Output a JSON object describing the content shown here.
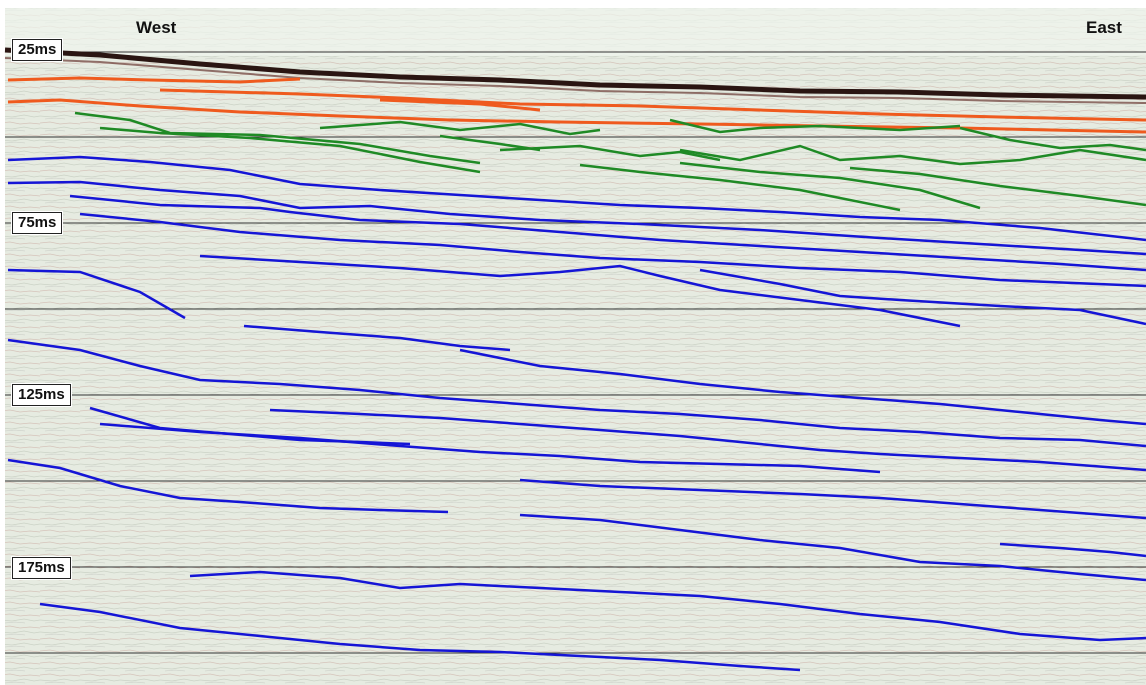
{
  "labels": {
    "west": "West",
    "east": "East"
  },
  "time_markers": [
    "25ms",
    "75ms",
    "125ms",
    "175ms"
  ],
  "colors": {
    "background": "#e6ebe1",
    "seabed": "#2a1512",
    "orange_horizons": "#ef5a1e",
    "green_horizons": "#1f8a25",
    "blue_horizons": "#1515d6",
    "grid": "#333333"
  }
}
